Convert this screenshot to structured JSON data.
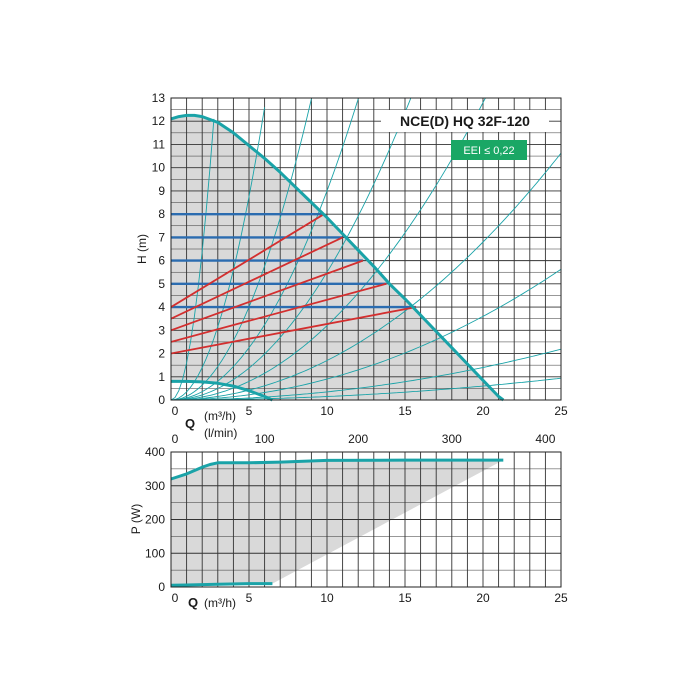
{
  "chart_data": [
    {
      "type": "line",
      "title": "NCE(D) HQ 32F-120",
      "badge": {
        "label": "EEI ≤ 0,22",
        "color": "#1aa765"
      },
      "xlabel": "Q",
      "xunit": "(m³/h)",
      "x2unit": "(l/min)",
      "ylabel": "H (m)",
      "xlim": [
        0,
        25
      ],
      "ylim": [
        0,
        13
      ],
      "x_ticks": [
        "0",
        "5",
        "10",
        "15",
        "20",
        "25"
      ],
      "x2_ticks": [
        "0",
        "100",
        "200",
        "300",
        "400"
      ],
      "y_ticks": [
        "0",
        "1",
        "2",
        "3",
        "4",
        "5",
        "6",
        "7",
        "8",
        "9",
        "10",
        "11",
        "12",
        "13"
      ],
      "grid": true,
      "colors": {
        "max_curve": "#1aa3a8",
        "min_curve": "#1aa3a8",
        "system_curves": "#1aa3a8",
        "constant_pressure": "#2b6cb0",
        "proportional_pressure": "#d32f2f",
        "area": "#d9d9d9"
      },
      "series": [
        {
          "x": [
            0,
            0.5,
            1,
            1.5,
            2,
            3,
            4,
            5,
            6,
            7,
            8,
            9,
            10,
            11,
            12,
            13,
            14,
            15,
            16,
            17,
            18,
            19,
            20,
            21,
            21.3
          ],
          "y": [
            12.1,
            12.2,
            12.25,
            12.25,
            12.2,
            11.95,
            11.5,
            10.95,
            10.4,
            9.8,
            9.15,
            8.5,
            7.85,
            7.15,
            6.45,
            5.75,
            5.0,
            4.35,
            3.65,
            2.95,
            2.25,
            1.55,
            0.85,
            0.15,
            0
          ]
        },
        {
          "x": [
            0,
            1,
            2,
            3,
            4,
            5,
            6,
            6.5
          ],
          "y": [
            0.8,
            0.8,
            0.78,
            0.72,
            0.6,
            0.4,
            0.15,
            0
          ]
        },
        {
          "x": [
            0,
            9.8
          ],
          "y": [
            8,
            8
          ]
        },
        {
          "x": [
            0,
            11.0
          ],
          "y": [
            7,
            7
          ]
        },
        {
          "x": [
            0,
            12.3
          ],
          "y": [
            6,
            6
          ]
        },
        {
          "x": [
            0,
            13.8
          ],
          "y": [
            5,
            5
          ]
        },
        {
          "x": [
            0,
            15.7
          ],
          "y": [
            4,
            4
          ]
        },
        {
          "x": [
            0,
            9.8
          ],
          "y": [
            4,
            8
          ]
        },
        {
          "x": [
            0,
            11.0
          ],
          "y": [
            3.5,
            7
          ]
        },
        {
          "x": [
            0,
            12.3
          ],
          "y": [
            3,
            6
          ]
        },
        {
          "x": [
            0,
            13.8
          ],
          "y": [
            2.5,
            5
          ]
        },
        {
          "x": [
            0,
            15.7
          ],
          "y": [
            2,
            4
          ]
        }
      ],
      "system_curve_k": [
        1.6,
        0.35,
        0.16,
        0.09,
        0.055,
        0.032,
        0.017,
        0.009,
        0.0035,
        0.0015
      ]
    },
    {
      "type": "line",
      "xlabel": "Q",
      "xunit": "(m³/h)",
      "ylabel": "P (W)",
      "xlim": [
        0,
        25
      ],
      "ylim": [
        0,
        400
      ],
      "x_ticks": [
        "0",
        "5",
        "10",
        "15",
        "20",
        "25"
      ],
      "y_ticks": [
        "0",
        "100",
        "200",
        "300",
        "400"
      ],
      "grid": true,
      "series": [
        {
          "x": [
            0,
            1,
            2,
            2.5,
            3,
            5,
            7,
            10,
            15,
            20,
            21.3
          ],
          "y": [
            320,
            335,
            355,
            363,
            368,
            368,
            370,
            375,
            376,
            376,
            376
          ]
        },
        {
          "x": [
            0,
            1,
            3,
            5,
            6.5
          ],
          "y": [
            5,
            6,
            8,
            10,
            10
          ]
        }
      ]
    }
  ]
}
